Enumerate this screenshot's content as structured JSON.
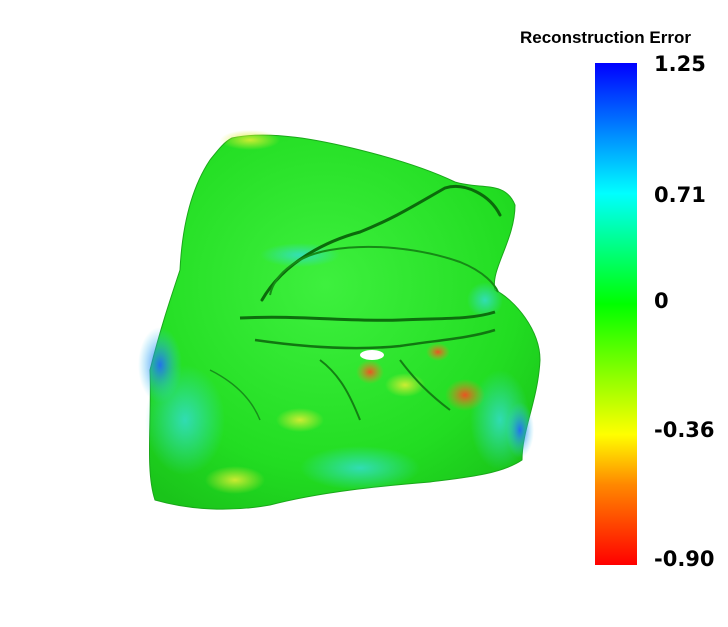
{
  "colorbar": {
    "title": "Reconstruction Error",
    "ticks": [
      "1.25",
      "0.71",
      "0",
      "-0.36",
      "-0.90"
    ],
    "colors": [
      "#0000ff",
      "#00ffff",
      "#00ff00",
      "#ffff00",
      "#ff0000"
    ]
  },
  "surface": {
    "dominant_color": "#22ee22"
  }
}
